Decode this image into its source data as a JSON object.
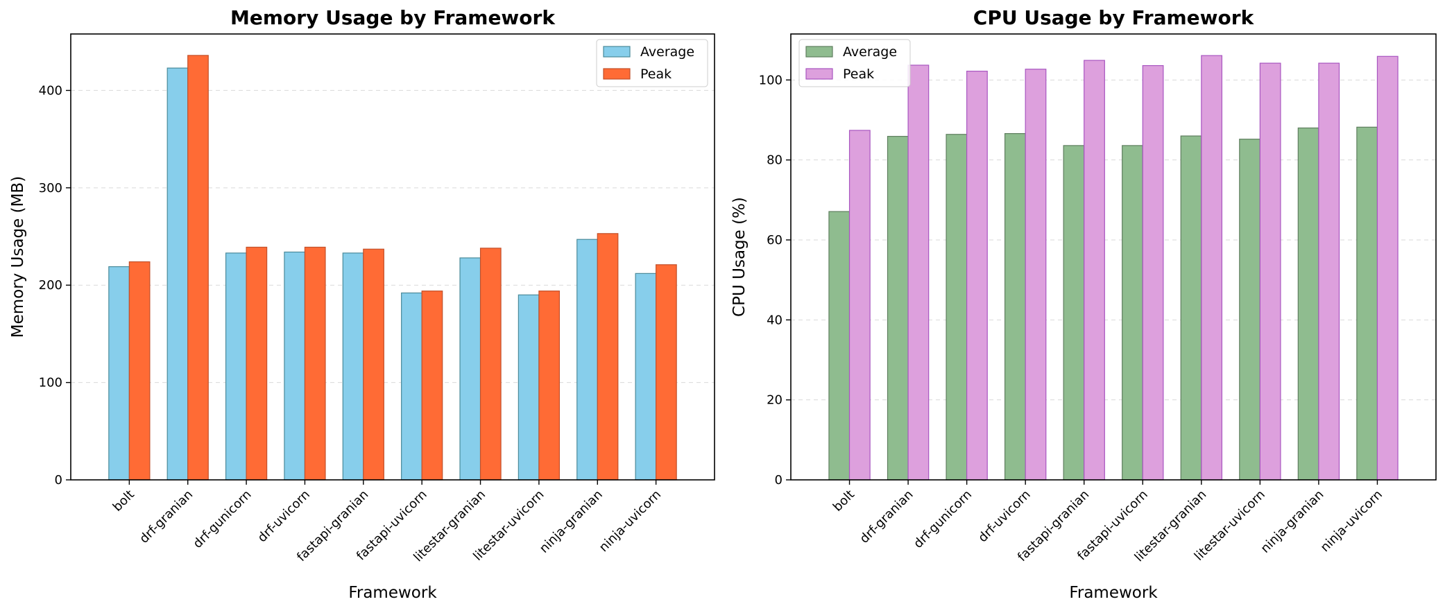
{
  "chart_data": [
    {
      "type": "bar",
      "title": "Memory Usage by Framework",
      "xlabel": "Framework",
      "ylabel": "Memory Usage (MB)",
      "ylim": [
        0,
        458
      ],
      "yticks": [
        0,
        100,
        200,
        300,
        400
      ],
      "grid": "y-dashed",
      "legend": "top-right",
      "categories": [
        "bolt",
        "drf-granian",
        "drf-gunicorn",
        "drf-uvicorn",
        "fastapi-granian",
        "fastapi-uvicorn",
        "litestar-granian",
        "litestar-uvicorn",
        "ninja-granian",
        "ninja-uvicorn"
      ],
      "series": [
        {
          "name": "Average",
          "color": "#87CEEB",
          "edge": "#4a8a9a",
          "values": [
            219,
            423,
            233,
            234,
            233,
            192,
            228,
            190,
            247,
            212
          ]
        },
        {
          "name": "Peak",
          "color": "#FF6B35",
          "edge": "#c2502a",
          "values": [
            224,
            436,
            239,
            239,
            237,
            194,
            238,
            194,
            253,
            221
          ]
        }
      ]
    },
    {
      "type": "bar",
      "title": "CPU Usage by Framework",
      "xlabel": "Framework",
      "ylabel": "CPU Usage (%)",
      "ylim": [
        0,
        111.5
      ],
      "yticks": [
        0,
        20,
        40,
        60,
        80,
        100
      ],
      "grid": "y-dashed",
      "legend": "top-left",
      "categories": [
        "bolt",
        "drf-granian",
        "drf-gunicorn",
        "drf-uvicorn",
        "fastapi-granian",
        "fastapi-uvicorn",
        "litestar-granian",
        "litestar-uvicorn",
        "ninja-granian",
        "ninja-uvicorn"
      ],
      "series": [
        {
          "name": "Average",
          "color": "#8FBC8F",
          "edge": "#5e7e5e",
          "values": [
            67.1,
            85.9,
            86.4,
            86.6,
            83.6,
            83.6,
            86.0,
            85.2,
            88.0,
            88.2
          ]
        },
        {
          "name": "Peak",
          "color": "#DDA0DD",
          "edge": "#a855c0",
          "values": [
            87.4,
            103.7,
            102.2,
            102.7,
            104.9,
            103.6,
            106.1,
            104.2,
            104.2,
            105.9
          ]
        }
      ]
    }
  ]
}
